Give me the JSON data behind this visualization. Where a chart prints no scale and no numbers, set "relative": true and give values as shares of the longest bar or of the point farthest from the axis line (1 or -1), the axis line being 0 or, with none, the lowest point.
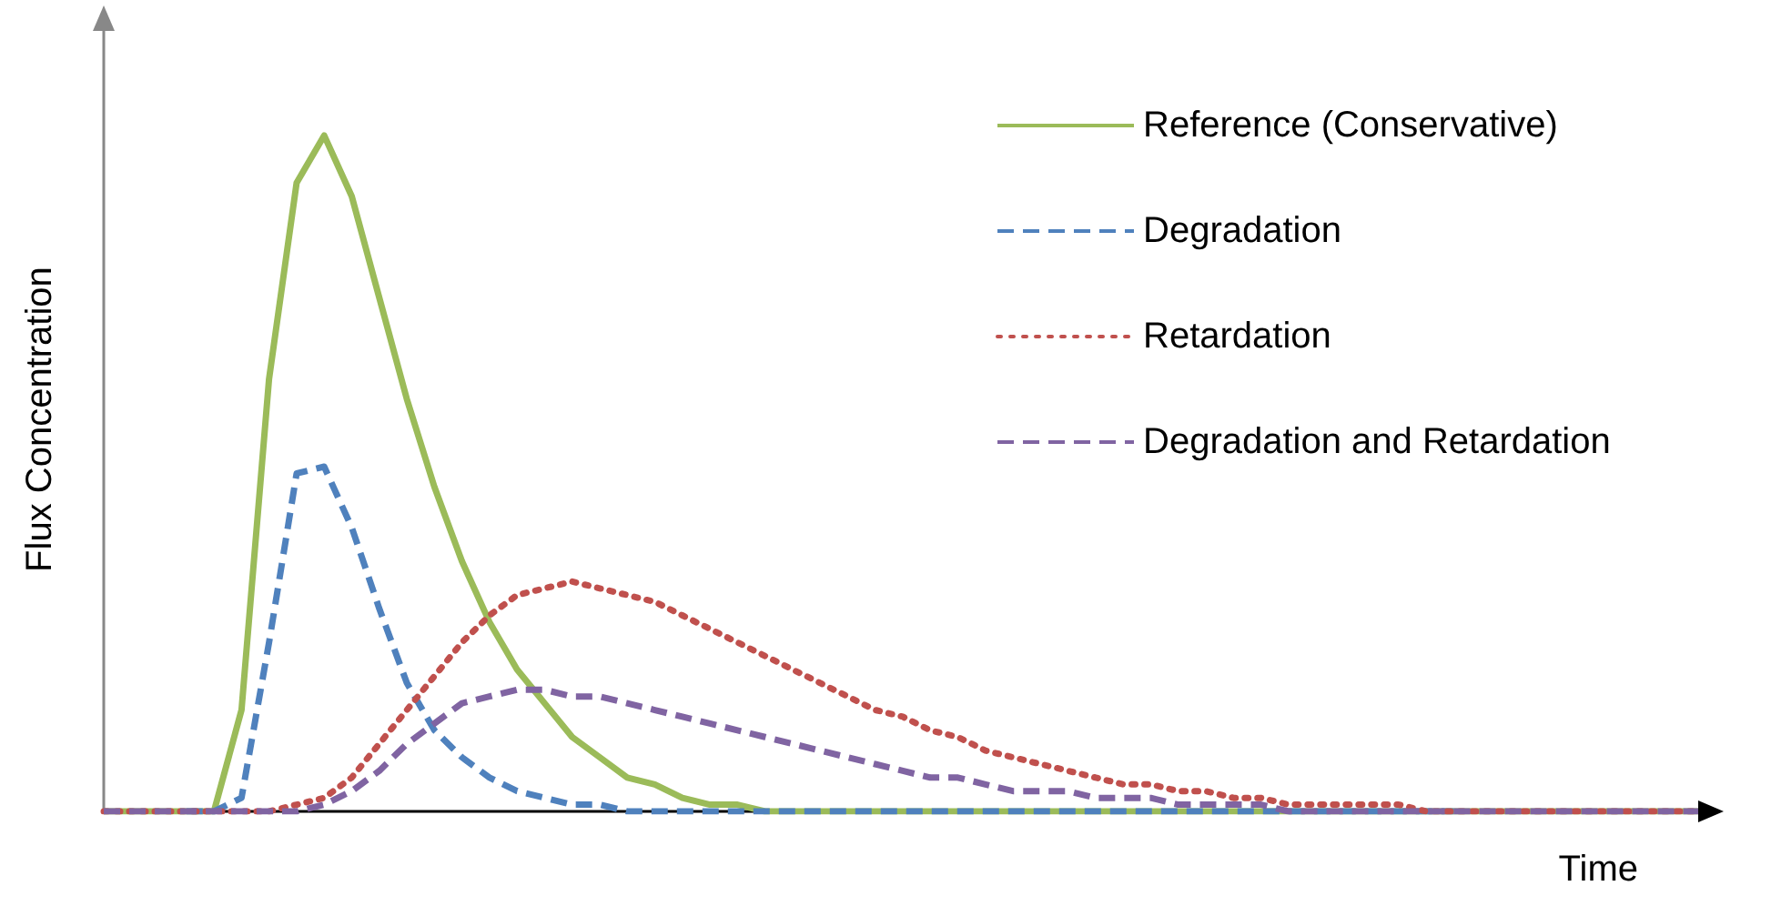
{
  "chart_data": {
    "type": "line",
    "relative": true,
    "xlabel": "Time",
    "ylabel": "Flux Concentration",
    "legend": "top right",
    "grid": false,
    "marker": "none",
    "categories": [
      null,
      null,
      null,
      null,
      null,
      null,
      null,
      null,
      null,
      null,
      null,
      null,
      null,
      null,
      null,
      null,
      null,
      null,
      null,
      null,
      null,
      null,
      null,
      null,
      null,
      null,
      null,
      null,
      null,
      null,
      null,
      null,
      null,
      null,
      null,
      null,
      null,
      null,
      null,
      null,
      null,
      null,
      null,
      null,
      null,
      null,
      null,
      null,
      null,
      null,
      null,
      null,
      null,
      null,
      null,
      null,
      null,
      null,
      null
    ],
    "series": [
      {
        "name": "Reference (Conservative)",
        "color": "#9bbb59",
        "line_style": "solid",
        "values": [
          0,
          0,
          0,
          0,
          0,
          0.15,
          0.64,
          0.93,
          1,
          0.91,
          0.76,
          0.61,
          0.48,
          0.37,
          0.28,
          0.21,
          0.16,
          0.11,
          0.08,
          0.05,
          0.04,
          0.02,
          0.01,
          0.01,
          0,
          0,
          0,
          0,
          0,
          0,
          0,
          0,
          0,
          0,
          0,
          0,
          0,
          0,
          0,
          0,
          0,
          0,
          0,
          0,
          0,
          0,
          0,
          0,
          0,
          0,
          0,
          0,
          0,
          0,
          0,
          0,
          0,
          0,
          0
        ]
      },
      {
        "name": "Degradation",
        "color": "#4f81bd",
        "line_style": "dashed",
        "values": [
          null,
          null,
          null,
          0,
          0,
          0.02,
          0.25,
          0.5,
          0.51,
          0.42,
          0.3,
          0.19,
          0.12,
          0.08,
          0.05,
          0.03,
          0.02,
          0.01,
          0.01,
          0,
          0,
          0,
          0,
          0,
          0,
          0,
          0,
          0,
          0,
          0,
          0,
          0,
          0,
          0,
          0,
          0,
          0,
          0,
          0,
          0,
          0,
          0,
          0,
          0,
          0,
          0,
          0,
          0,
          0,
          0,
          null,
          null,
          null,
          null,
          null,
          null,
          null,
          null,
          null
        ]
      },
      {
        "name": "Retardation",
        "color": "#c0504d",
        "line_style": "dotted",
        "values": [
          0,
          0,
          0,
          0,
          0,
          0,
          0,
          0.01,
          0.02,
          0.05,
          0.1,
          0.15,
          0.2,
          0.25,
          0.29,
          0.32,
          0.33,
          0.34,
          0.33,
          0.32,
          0.31,
          0.29,
          0.27,
          0.25,
          0.23,
          0.21,
          0.19,
          0.17,
          0.15,
          0.14,
          0.12,
          0.11,
          0.09,
          0.08,
          0.07,
          0.06,
          0.05,
          0.04,
          0.04,
          0.03,
          0.03,
          0.02,
          0.02,
          0.01,
          0.01,
          0.01,
          0.01,
          0.01,
          0,
          0,
          0,
          0,
          0,
          0,
          0,
          0,
          0,
          0,
          0
        ]
      },
      {
        "name": "Degradation and Retardation",
        "color": "#8064a2",
        "line_style": "dashed",
        "values": [
          0,
          0,
          0,
          0,
          0,
          0,
          0,
          0,
          0.01,
          0.03,
          0.06,
          0.1,
          0.13,
          0.16,
          0.17,
          0.18,
          0.18,
          0.17,
          0.17,
          0.16,
          0.15,
          0.14,
          0.13,
          0.12,
          0.11,
          0.1,
          0.09,
          0.08,
          0.07,
          0.06,
          0.05,
          0.05,
          0.04,
          0.03,
          0.03,
          0.03,
          0.02,
          0.02,
          0.02,
          0.01,
          0.01,
          0.01,
          0.01,
          0,
          0,
          0,
          0,
          0,
          0,
          0,
          0,
          0,
          0,
          0,
          0,
          0,
          0,
          0,
          0
        ]
      }
    ]
  }
}
